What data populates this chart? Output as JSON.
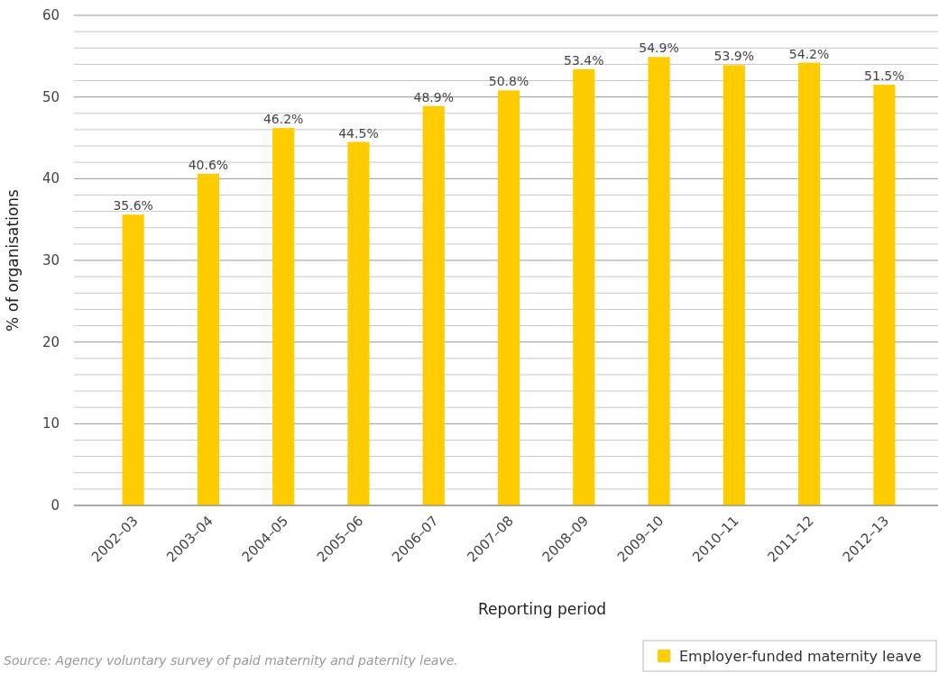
{
  "chart_data": {
    "type": "bar",
    "xlabel": "Reporting period",
    "ylabel": "% of organisations",
    "categories": [
      "2002–03",
      "2003–04",
      "2004–05",
      "2005–06",
      "2006–07",
      "2007–08",
      "2008–09",
      "2009–10",
      "2010–11",
      "2011–12",
      "2012–13"
    ],
    "series": [
      {
        "name": "Employer-funded maternity leave",
        "color": "#ffcc00",
        "values": [
          35.6,
          40.6,
          46.2,
          44.5,
          48.9,
          50.8,
          53.4,
          54.9,
          53.9,
          54.2,
          51.5
        ],
        "value_labels": [
          "35.6%",
          "40.6%",
          "46.2%",
          "44.5%",
          "48.9%",
          "50.8%",
          "53.4%",
          "54.9%",
          "53.9%",
          "54.2%",
          "51.5%"
        ]
      }
    ],
    "ylim": [
      0,
      60
    ],
    "yticks": [
      0,
      {
        "value": 2,
        "label": null
      },
      {
        "value": 4,
        "label": null
      },
      {
        "value": 6,
        "label": null
      },
      {
        "value": 8,
        "label": null
      },
      10,
      {
        "value": 12,
        "label": null
      },
      {
        "value": 14,
        "label": null
      },
      {
        "value": 16,
        "label": null
      },
      {
        "value": 18,
        "label": null
      },
      20,
      {
        "value": 22,
        "label": null
      },
      {
        "value": 24,
        "label": null
      },
      {
        "value": 26,
        "label": null
      },
      {
        "value": 28,
        "label": null
      },
      30,
      {
        "value": 32,
        "label": null
      },
      {
        "value": 34,
        "label": null
      },
      {
        "value": 36,
        "label": null
      },
      {
        "value": 38,
        "label": null
      },
      40,
      {
        "value": 42,
        "label": null
      },
      {
        "value": 44,
        "label": null
      },
      {
        "value": 46,
        "label": null
      },
      {
        "value": 48,
        "label": null
      },
      50,
      {
        "value": 52,
        "label": null
      },
      {
        "value": 54,
        "label": null
      },
      {
        "value": 56,
        "label": null
      },
      {
        "value": 58,
        "label": null
      },
      60
    ],
    "grid": "y",
    "legend": "bottom right",
    "annotations": [
      "Source: Agency voluntary survey of paid maternity and paternity leave."
    ]
  }
}
